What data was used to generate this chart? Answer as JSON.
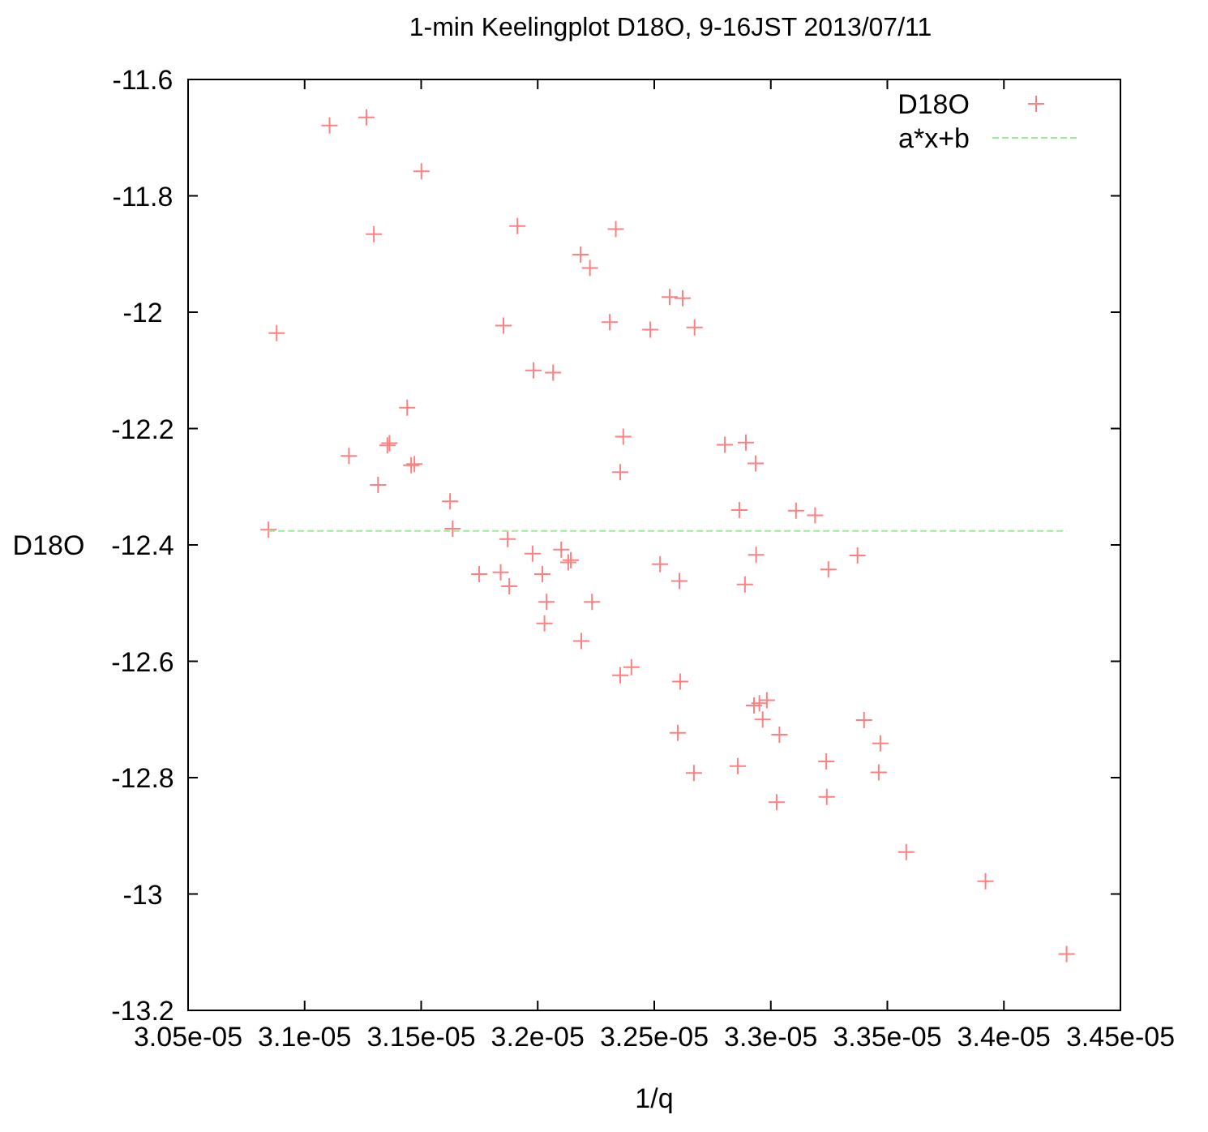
{
  "chart_data": {
    "type": "scatter",
    "title": "1-min Keelingplot D18O, 9-16JST 2013/07/11",
    "xlabel": "1/q",
    "ylabel": "D18O",
    "xlim": [
      3.05e-05,
      3.45e-05
    ],
    "xticks": [
      {
        "value": 3.05e-05,
        "label": "3.05e-05"
      },
      {
        "value": 3.1e-05,
        "label": "3.1e-05"
      },
      {
        "value": 3.15e-05,
        "label": "3.15e-05"
      },
      {
        "value": 3.2e-05,
        "label": "3.2e-05"
      },
      {
        "value": 3.25e-05,
        "label": "3.25e-05"
      },
      {
        "value": 3.3e-05,
        "label": "3.3e-05"
      },
      {
        "value": 3.35e-05,
        "label": "3.35e-05"
      },
      {
        "value": 3.4e-05,
        "label": "3.4e-05"
      },
      {
        "value": 3.45e-05,
        "label": "3.45e-05"
      }
    ],
    "ylim": [
      -13.2,
      -11.6
    ],
    "yticks": [
      -13.2,
      -13,
      -12.8,
      -12.6,
      -12.4,
      -12.2,
      -12,
      -11.8,
      -11.6
    ],
    "grid": false,
    "legend": "top right",
    "series": [
      {
        "name": "D18O",
        "marker": "cross",
        "color": "#ff8080",
        "x": [
          3.1107e-05,
          3.1265e-05,
          3.1501e-05,
          3.1297e-05,
          3.088e-05,
          3.144e-05,
          3.119e-05,
          3.1355e-05,
          3.1364e-05,
          3.1457e-05,
          3.1471e-05,
          3.1315e-05,
          3.1624e-05,
          3.0845e-05,
          3.1635e-05,
          3.1913e-05,
          3.2335e-05,
          3.2184e-05,
          3.2224e-05,
          3.2566e-05,
          3.2622e-05,
          3.1853e-05,
          3.2309e-05,
          3.2483e-05,
          3.2673e-05,
          3.1982e-05,
          3.2066e-05,
          3.2367e-05,
          3.2803e-05,
          3.2893e-05,
          3.2935e-05,
          3.2354e-05,
          3.2865e-05,
          3.3108e-05,
          3.319e-05,
          3.1871e-05,
          3.1978e-05,
          3.2101e-05,
          3.2131e-05,
          3.2142e-05,
          3.1841e-05,
          3.1878e-05,
          3.202e-05,
          3.2525e-05,
          3.2608e-05,
          3.2937e-05,
          3.2889e-05,
          3.3247e-05,
          3.2038e-05,
          3.2233e-05,
          3.2029e-05,
          3.2187e-05,
          3.2354e-05,
          3.2402e-05,
          3.2611e-05,
          3.2928e-05,
          3.2951e-05,
          3.2983e-05,
          3.2965e-05,
          3.3037e-05,
          3.2601e-05,
          3.2858e-05,
          3.267e-05,
          3.3238e-05,
          3.3025e-05,
          3.324e-05,
          3.1749e-05,
          3.3372e-05,
          3.34e-05,
          3.347e-05,
          3.3463e-05,
          3.3581e-05,
          3.3921e-05,
          3.4269e-05
        ],
        "values": [
          -11.679,
          -11.665,
          -11.758,
          -11.866,
          -12.036,
          -12.164,
          -12.247,
          -12.229,
          -12.225,
          -12.263,
          -12.261,
          -12.297,
          -12.325,
          -12.374,
          -12.372,
          -11.852,
          -11.857,
          -11.901,
          -11.924,
          -11.974,
          -11.976,
          -12.023,
          -12.017,
          -12.03,
          -12.026,
          -12.1,
          -12.104,
          -12.214,
          -12.228,
          -12.224,
          -12.26,
          -12.275,
          -12.34,
          -12.341,
          -12.349,
          -12.39,
          -12.415,
          -12.408,
          -12.43,
          -12.426,
          -12.447,
          -12.471,
          -12.45,
          -12.433,
          -12.462,
          -12.417,
          -12.468,
          -12.442,
          -12.498,
          -12.498,
          -12.535,
          -12.565,
          -12.624,
          -12.61,
          -12.635,
          -12.676,
          -12.672,
          -12.667,
          -12.7,
          -12.726,
          -12.723,
          -12.78,
          -12.792,
          -12.772,
          -12.842,
          -12.833,
          -12.45,
          -12.418,
          -12.701,
          -12.741,
          -12.791,
          -12.928,
          -12.978,
          -13.103
        ]
      },
      {
        "name": "a*x+b",
        "type": "line",
        "marker": "none",
        "line_style": "dashed",
        "color": "#a0e8a0",
        "x": [
          3.0845e-05,
          3.4269e-05
        ],
        "values": [
          -12.376,
          -12.376
        ]
      }
    ]
  }
}
